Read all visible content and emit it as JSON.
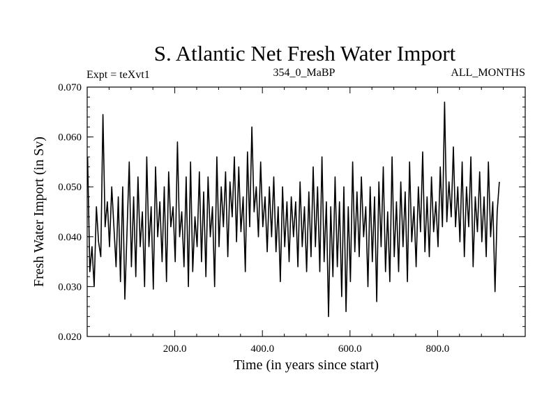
{
  "chart_data": {
    "type": "line",
    "title": "S. Atlantic Net Fresh Water Import",
    "subtitle_left": "Expt = teXvt1",
    "subtitle_center": "354_0_MaBP",
    "subtitle_right": "ALL_MONTHS",
    "xlabel": "Time (in years since start)",
    "ylabel": "Fresh Water Import (in Sv)",
    "xlim": [
      0,
      1000
    ],
    "ylim": [
      0.02,
      0.07
    ],
    "x_ticks": [
      200,
      400,
      600,
      800
    ],
    "x_tick_labels": [
      "200.0",
      "400.0",
      "600.0",
      "800.0"
    ],
    "y_ticks": [
      0.02,
      0.03,
      0.04,
      0.05,
      0.06,
      0.07
    ],
    "y_tick_labels": [
      "0.020",
      "0.030",
      "0.040",
      "0.050",
      "0.060",
      "0.070"
    ],
    "grid": false,
    "series": [
      {
        "name": "fresh_water_import",
        "x_start": 1,
        "x_step": 5,
        "values": [
          0.056,
          0.033,
          0.038,
          0.03,
          0.046,
          0.039,
          0.036,
          0.0645,
          0.042,
          0.047,
          0.038,
          0.05,
          0.042,
          0.034,
          0.048,
          0.031,
          0.05,
          0.0275,
          0.041,
          0.055,
          0.034,
          0.048,
          0.032,
          0.052,
          0.038,
          0.045,
          0.03,
          0.056,
          0.038,
          0.046,
          0.0295,
          0.054,
          0.04,
          0.047,
          0.035,
          0.05,
          0.031,
          0.053,
          0.042,
          0.046,
          0.035,
          0.059,
          0.04,
          0.045,
          0.034,
          0.052,
          0.03,
          0.055,
          0.033,
          0.044,
          0.038,
          0.053,
          0.035,
          0.049,
          0.032,
          0.052,
          0.04,
          0.046,
          0.03,
          0.056,
          0.038,
          0.05,
          0.042,
          0.053,
          0.036,
          0.051,
          0.044,
          0.056,
          0.039,
          0.054,
          0.041,
          0.048,
          0.033,
          0.057,
          0.042,
          0.062,
          0.045,
          0.05,
          0.04,
          0.055,
          0.042,
          0.048,
          0.037,
          0.05,
          0.04,
          0.052,
          0.037,
          0.046,
          0.031,
          0.05,
          0.038,
          0.047,
          0.035,
          0.048,
          0.04,
          0.047,
          0.034,
          0.051,
          0.038,
          0.046,
          0.033,
          0.049,
          0.036,
          0.054,
          0.038,
          0.05,
          0.033,
          0.056,
          0.035,
          0.047,
          0.024,
          0.046,
          0.032,
          0.052,
          0.034,
          0.047,
          0.028,
          0.05,
          0.025,
          0.046,
          0.031,
          0.055,
          0.037,
          0.049,
          0.036,
          0.052,
          0.04,
          0.046,
          0.03,
          0.05,
          0.035,
          0.048,
          0.027,
          0.051,
          0.038,
          0.054,
          0.033,
          0.045,
          0.031,
          0.056,
          0.036,
          0.047,
          0.033,
          0.051,
          0.038,
          0.049,
          0.031,
          0.055,
          0.039,
          0.046,
          0.034,
          0.05,
          0.041,
          0.057,
          0.037,
          0.048,
          0.036,
          0.052,
          0.041,
          0.047,
          0.038,
          0.054,
          0.042,
          0.067,
          0.043,
          0.051,
          0.044,
          0.058,
          0.042,
          0.05,
          0.039,
          0.055,
          0.036,
          0.05,
          0.042,
          0.056,
          0.034,
          0.048,
          0.041,
          0.053,
          0.039,
          0.048,
          0.036,
          0.055,
          0.04,
          0.047,
          0.029,
          0.045,
          0.051
        ]
      }
    ]
  }
}
